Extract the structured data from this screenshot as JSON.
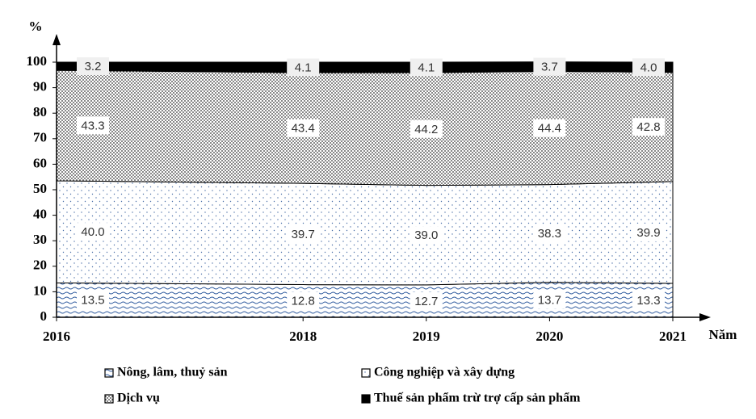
{
  "chart_data": {
    "type": "stacked-area",
    "y_label": "%",
    "x_label": "Năm",
    "x": [
      2016,
      2018,
      2019,
      2020,
      2021
    ],
    "xlim": [
      2016,
      2021
    ],
    "xticks": [
      2016,
      2018,
      2019,
      2020,
      2021
    ],
    "ylim": [
      0,
      100
    ],
    "yticks": [
      0,
      10,
      20,
      30,
      40,
      50,
      60,
      70,
      80,
      90,
      100
    ],
    "series": [
      {
        "name": "Nông, lâm, thuỷ sản",
        "color": "#2e5a9e",
        "values": [
          13.5,
          12.8,
          12.7,
          13.7,
          13.3
        ],
        "value_labels": [
          "13.5",
          "12.8",
          "12.7",
          "13.7",
          "13.3"
        ]
      },
      {
        "name": "Công nghiệp và xây dựng",
        "color": "#4a6fa8",
        "values": [
          40.0,
          39.7,
          39.0,
          38.3,
          39.9
        ],
        "value_labels": [
          "40.0",
          "39.7",
          "39.0",
          "38.3",
          "39.9"
        ]
      },
      {
        "name": "Dịch vụ",
        "color": "#333333",
        "values": [
          43.3,
          43.4,
          44.2,
          44.4,
          42.8
        ],
        "value_labels": [
          "43.3",
          "43.4",
          "44.2",
          "44.4",
          "42.8"
        ]
      },
      {
        "name": "Thuế sản phẩm trừ trợ cấp sản phẩm",
        "color": "#000000",
        "values": [
          3.2,
          4.1,
          4.1,
          3.7,
          4.0
        ],
        "value_labels": [
          "3.2",
          "4.1",
          "4.1",
          "3.7",
          "4.0"
        ]
      }
    ]
  }
}
